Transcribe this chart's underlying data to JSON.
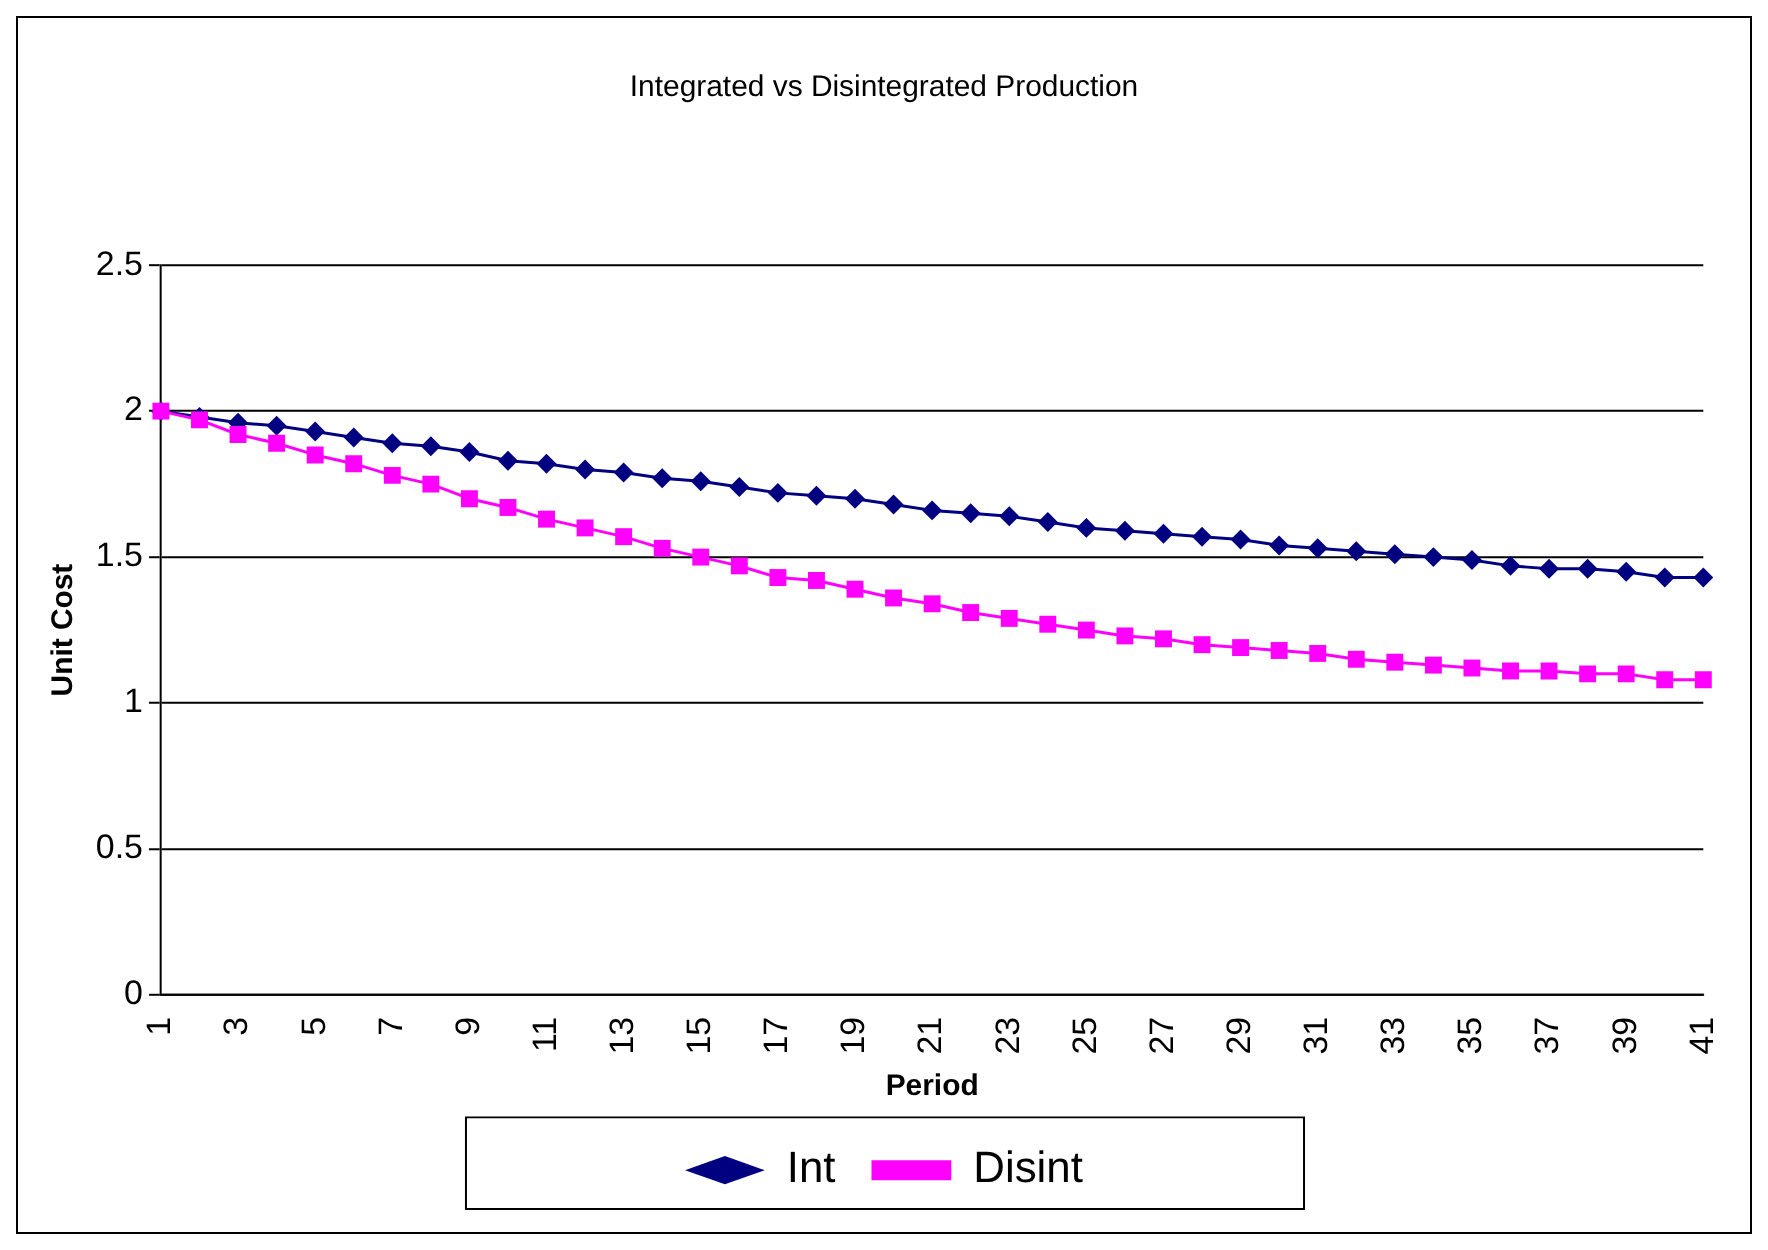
{
  "chart_data": {
    "type": "line",
    "title": "Integrated vs Disintegrated Production",
    "xlabel": "Period",
    "ylabel": "Unit Cost",
    "categories": [
      "1",
      null,
      "3",
      null,
      "5",
      null,
      "7",
      null,
      "9",
      null,
      "11",
      null,
      "13",
      null,
      "15",
      null,
      "17",
      null,
      "19",
      null,
      "21",
      null,
      "23",
      null,
      "25",
      null,
      "27",
      null,
      "29",
      null,
      "31",
      null,
      "33",
      null,
      "35",
      null,
      "37",
      null,
      "39",
      null,
      "41"
    ],
    "series": [
      {
        "name": "Int",
        "color": "#000080",
        "marker": "diamond",
        "values": [
          2.0,
          1.98,
          1.96,
          1.95,
          1.93,
          1.91,
          1.89,
          1.88,
          1.86,
          1.83,
          1.82,
          1.8,
          1.79,
          1.77,
          1.76,
          1.74,
          1.72,
          1.71,
          1.7,
          1.68,
          1.66,
          1.65,
          1.64,
          1.62,
          1.6,
          1.59,
          1.58,
          1.57,
          1.56,
          1.54,
          1.53,
          1.52,
          1.51,
          1.5,
          1.49,
          1.47,
          1.46,
          1.46,
          1.45,
          1.43,
          1.43
        ]
      },
      {
        "name": "Disint",
        "color": "#ff00ff",
        "marker": "square",
        "values": [
          2.0,
          1.97,
          1.92,
          1.89,
          1.85,
          1.82,
          1.78,
          1.75,
          1.7,
          1.67,
          1.63,
          1.6,
          1.57,
          1.53,
          1.5,
          1.47,
          1.43,
          1.42,
          1.39,
          1.36,
          1.34,
          1.31,
          1.29,
          1.27,
          1.25,
          1.23,
          1.22,
          1.2,
          1.19,
          1.18,
          1.17,
          1.15,
          1.14,
          1.13,
          1.12,
          1.11,
          1.11,
          1.1,
          1.1,
          1.08,
          1.08
        ]
      }
    ],
    "ylim": [
      0,
      2.5
    ],
    "yticks": [
      0,
      0.5,
      1,
      1.5,
      2,
      2.5
    ],
    "grid": "y",
    "legend": "bottom",
    "line_style": "solid"
  }
}
